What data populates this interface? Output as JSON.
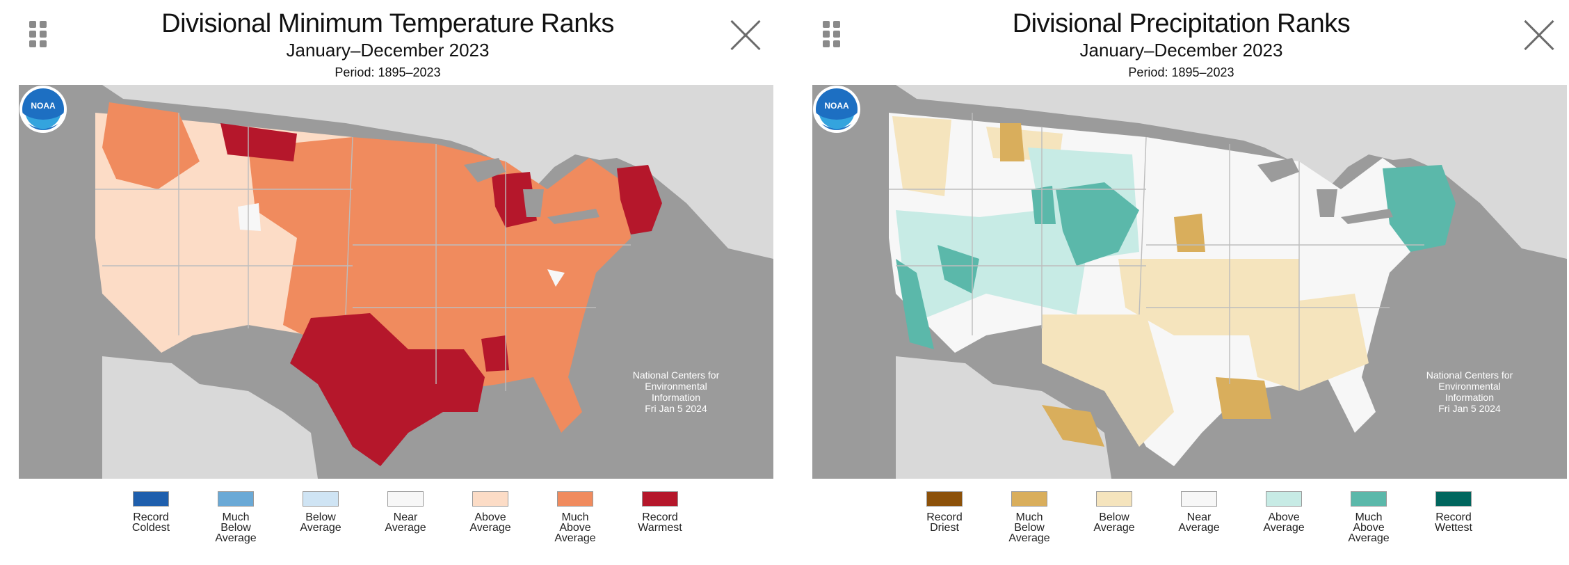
{
  "panels": [
    {
      "title": "Divisional Minimum Temperature Ranks",
      "subtitle": "January–December 2023",
      "period": "Period: 1895–2023",
      "credit": [
        "National Centers for",
        "Environmental",
        "Information",
        "Fri Jan  5 2024"
      ],
      "logo_text": "NOAA",
      "map_colors": {
        "water": "#9b9b9b",
        "land": "#d9d9d9",
        "borders": "#bdbdbd"
      },
      "legend": [
        {
          "lines": [
            "Record",
            "Coldest"
          ],
          "color": "#1f5fad"
        },
        {
          "lines": [
            "Much",
            "Below",
            "Average"
          ],
          "color": "#6aa9d6"
        },
        {
          "lines": [
            "Below",
            "Average"
          ],
          "color": "#cfe4f4"
        },
        {
          "lines": [
            "Near",
            "Average"
          ],
          "color": "#f7f7f7"
        },
        {
          "lines": [
            "Above",
            "Average"
          ],
          "color": "#fcdcc6"
        },
        {
          "lines": [
            "Much",
            "Above",
            "Average"
          ],
          "color": "#f08b5e"
        },
        {
          "lines": [
            "Record",
            "Warmest"
          ],
          "color": "#b5172b"
        }
      ]
    },
    {
      "title": "Divisional Precipitation Ranks",
      "subtitle": "January–December 2023",
      "period": "Period: 1895–2023",
      "credit": [
        "National Centers for",
        "Environmental",
        "Information",
        "Fri Jan  5 2024"
      ],
      "logo_text": "NOAA",
      "map_colors": {
        "water": "#9b9b9b",
        "land": "#d9d9d9",
        "borders": "#bdbdbd"
      },
      "legend": [
        {
          "lines": [
            "Record",
            "Driest"
          ],
          "color": "#8c510a"
        },
        {
          "lines": [
            "Much",
            "Below",
            "Average"
          ],
          "color": "#d9ae5c"
        },
        {
          "lines": [
            "Below",
            "Average"
          ],
          "color": "#f5e4bd"
        },
        {
          "lines": [
            "Near",
            "Average"
          ],
          "color": "#f7f7f7"
        },
        {
          "lines": [
            "Above",
            "Average"
          ],
          "color": "#c7ebe5"
        },
        {
          "lines": [
            "Much",
            "Above",
            "Average"
          ],
          "color": "#5bb8aa"
        },
        {
          "lines": [
            "Record",
            "Wettest"
          ],
          "color": "#01665e"
        }
      ]
    }
  ]
}
